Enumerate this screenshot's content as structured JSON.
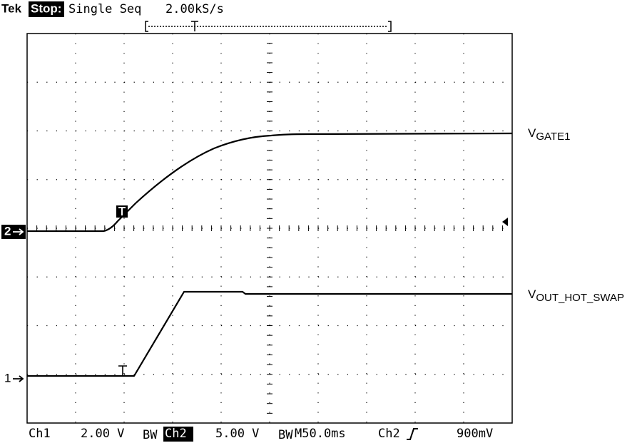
{
  "header": {
    "brand": "Tek",
    "status": "Stop:",
    "mode": "Single Seq",
    "sample_rate": "2.00kS/s"
  },
  "channel_markers": {
    "ch2": "2",
    "ch1": "1"
  },
  "trace_labels": [
    {
      "main": "V",
      "sub": "GATE1"
    },
    {
      "main": "V",
      "sub": "OUT_HOT_SWAP"
    }
  ],
  "footer": {
    "ch1": "Ch1",
    "ch1_scale": "2.00 V",
    "ch1_bw": "BW",
    "ch2": "Ch2",
    "ch2_scale": "5.00 V",
    "ch2_bw": "BW",
    "timebase": "M50.0ms",
    "trigger_source": "Ch2",
    "trigger_level": "900mV"
  }
}
